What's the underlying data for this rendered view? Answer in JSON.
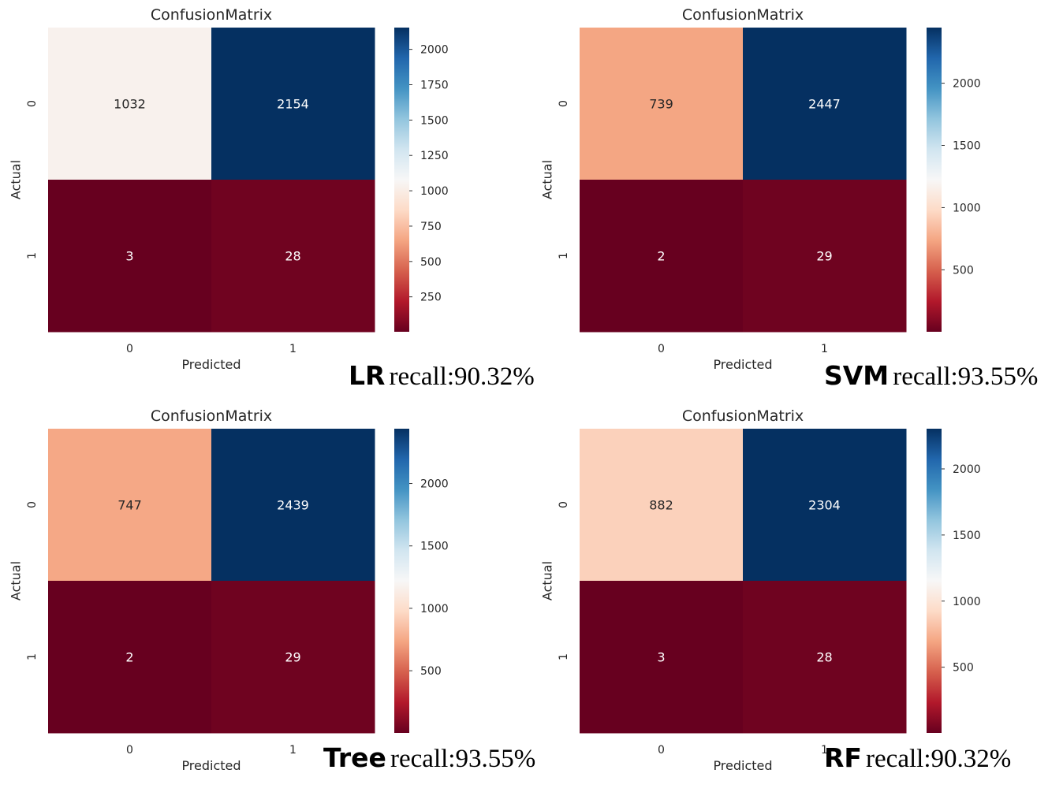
{
  "chart_data": [
    {
      "type": "heatmap",
      "title": "ConfusionMatrix",
      "xlabel": "Predicted",
      "ylabel": "Actual",
      "x_categories": [
        "0",
        "1"
      ],
      "y_categories": [
        "0",
        "1"
      ],
      "values": [
        [
          1032,
          2154
        ],
        [
          3,
          28
        ]
      ],
      "colormap": "RdBu",
      "color_range": [
        3,
        2154
      ],
      "colorbar_ticks": [
        250,
        500,
        750,
        1000,
        1250,
        1500,
        1750,
        2000
      ],
      "caption_model": "LR",
      "caption_metric": "recall:90.32%"
    },
    {
      "type": "heatmap",
      "title": "ConfusionMatrix",
      "xlabel": "Predicted",
      "ylabel": "Actual",
      "x_categories": [
        "0",
        "1"
      ],
      "y_categories": [
        "0",
        "1"
      ],
      "values": [
        [
          739,
          2447
        ],
        [
          2,
          29
        ]
      ],
      "colormap": "RdBu",
      "color_range": [
        2,
        2447
      ],
      "colorbar_ticks": [
        500,
        1000,
        1500,
        2000
      ],
      "caption_model": "SVM",
      "caption_metric": "recall:93.55%"
    },
    {
      "type": "heatmap",
      "title": "ConfusionMatrix",
      "xlabel": "Predicted",
      "ylabel": "Actual",
      "x_categories": [
        "0",
        "1"
      ],
      "y_categories": [
        "0",
        "1"
      ],
      "values": [
        [
          747,
          2439
        ],
        [
          2,
          29
        ]
      ],
      "colormap": "RdBu",
      "color_range": [
        2,
        2439
      ],
      "colorbar_ticks": [
        500,
        1000,
        1500,
        2000
      ],
      "caption_model": "Tree",
      "caption_metric": "recall:93.55%"
    },
    {
      "type": "heatmap",
      "title": "ConfusionMatrix",
      "xlabel": "Predicted",
      "ylabel": "Actual",
      "x_categories": [
        "0",
        "1"
      ],
      "y_categories": [
        "0",
        "1"
      ],
      "values": [
        [
          882,
          2304
        ],
        [
          3,
          28
        ]
      ],
      "colormap": "RdBu",
      "color_range": [
        3,
        2304
      ],
      "colorbar_ticks": [
        500,
        1000,
        1500,
        2000
      ],
      "caption_model": "RF",
      "caption_metric": "recall:90.32%"
    }
  ]
}
